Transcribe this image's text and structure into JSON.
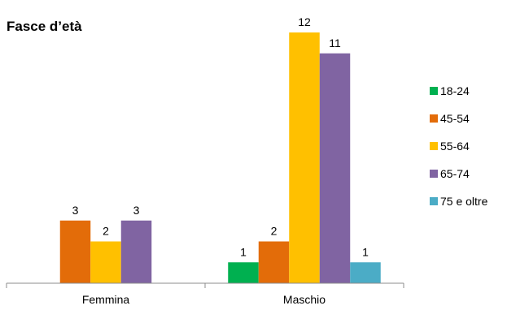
{
  "chart_data": {
    "type": "bar",
    "title": "Fasce d’età",
    "xlabel": "",
    "ylabel": "",
    "ylim": [
      0,
      12
    ],
    "grid": false,
    "legend_position": "right",
    "categories": [
      "Femmina",
      "Maschio"
    ],
    "series": [
      {
        "name": "18-24",
        "color": "#00B050",
        "values": [
          null,
          1
        ]
      },
      {
        "name": "45-54",
        "color": "#E36C09",
        "values": [
          3,
          2
        ]
      },
      {
        "name": "55-64",
        "color": "#FFC000",
        "values": [
          2,
          12
        ]
      },
      {
        "name": "65-74",
        "color": "#8064A2",
        "values": [
          3,
          11
        ]
      },
      {
        "name": "75 e oltre",
        "color": "#4BACC6",
        "values": [
          null,
          1
        ]
      }
    ]
  }
}
